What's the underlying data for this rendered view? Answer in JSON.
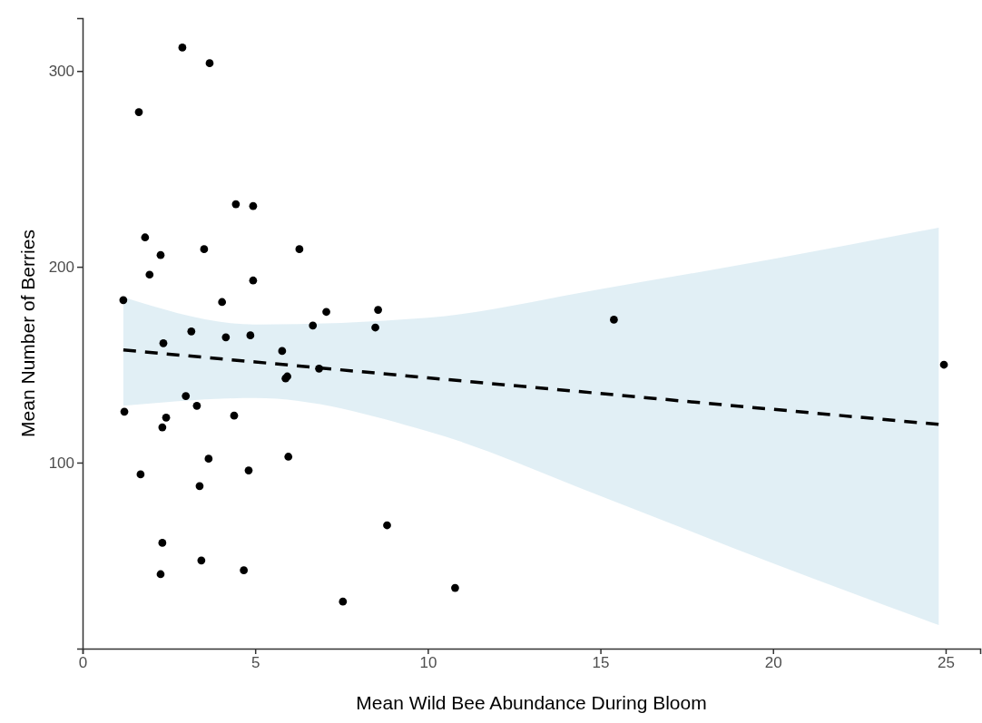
{
  "chart_data": {
    "type": "scatter",
    "xlabel": "Mean Wild Bee Abundance During Bloom",
    "ylabel": "Mean Number of Berries",
    "xlim": [
      0,
      26
    ],
    "xticks": [
      0,
      5,
      10,
      15,
      20,
      25
    ],
    "ylim": [
      5,
      327
    ],
    "yticks": [
      100,
      200,
      300
    ],
    "grid": false,
    "series": [
      {
        "color": "#000000",
        "marker": "circle",
        "x": [
          1.18,
          1.21,
          1.63,
          1.68,
          1.81,
          1.94,
          2.26,
          2.31,
          2.34,
          2.42,
          2.31,
          2.26,
          2.89,
          2.99,
          3.15,
          3.31,
          3.39,
          3.44,
          3.52,
          3.68,
          3.65,
          4.04,
          4.15,
          4.39,
          4.44,
          4.67,
          4.81,
          4.86,
          4.94,
          4.94,
          5.78,
          5.88,
          5.93,
          5.96,
          6.67,
          6.85,
          6.28,
          7.06,
          7.54,
          8.48,
          8.56,
          8.82,
          10.79,
          15.39,
          24.95
        ],
        "values": [
          183,
          126,
          279,
          94,
          215,
          196,
          206,
          118,
          161,
          123,
          59,
          43,
          312,
          134,
          167,
          129,
          88,
          50,
          209,
          304,
          102,
          182,
          164,
          124,
          232,
          45,
          96,
          165,
          231,
          193,
          157,
          143,
          144,
          103,
          170,
          148,
          209,
          177,
          29,
          169,
          178,
          68,
          36,
          173,
          150
        ]
      },
      {
        "type": "line",
        "color": "#000000",
        "line_style": "dashed",
        "x": [
          1.18,
          5,
          10,
          15,
          20,
          24.8
        ],
        "values": [
          157.5,
          151.4,
          143.3,
          135.3,
          127.2,
          119.5
        ],
        "lower": [
          129,
          133,
          116,
          83,
          48.5,
          17
        ],
        "upper": [
          184.5,
          170.5,
          174,
          188.6,
          204,
          220
        ]
      }
    ]
  }
}
